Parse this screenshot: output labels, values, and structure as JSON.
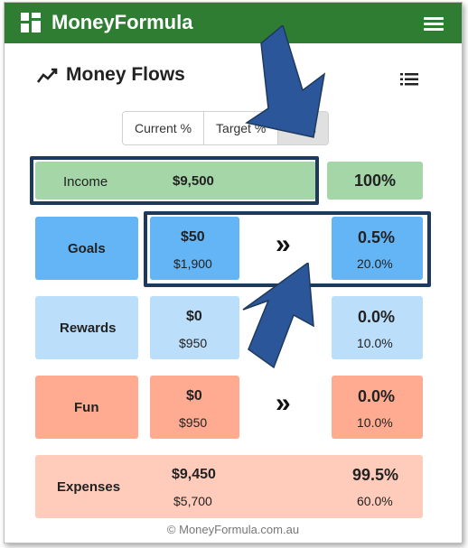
{
  "app": {
    "title": "MoneyFormula"
  },
  "page": {
    "title": "Money Flows"
  },
  "toggle": {
    "options": [
      "Current %",
      "Target %",
      "Both"
    ],
    "active": "Both"
  },
  "rows": {
    "income": {
      "label": "Income",
      "amount": "$9,500",
      "pct": "100%"
    },
    "goals": {
      "label": "Goals",
      "current": "$50",
      "target": "$1,900",
      "current_pct": "0.5%",
      "target_pct": "20.0%"
    },
    "rewards": {
      "label": "Rewards",
      "current": "$0",
      "target": "$950",
      "current_pct": "0.0%",
      "target_pct": "10.0%"
    },
    "fun": {
      "label": "Fun",
      "current": "$0",
      "target": "$950",
      "current_pct": "0.0%",
      "target_pct": "10.0%"
    },
    "expenses": {
      "label": "Expenses",
      "current": "$9,450",
      "target": "$5,700",
      "current_pct": "99.5%",
      "target_pct": "60.0%"
    }
  },
  "flow_arrow": "»",
  "footer": "© MoneyFormula.com.au",
  "colors": {
    "header": "#2e7d32",
    "income": "#a5d6a7",
    "goals": "#64b5f6",
    "rewards": "#bbdefb",
    "fun": "#ffab91",
    "expenses": "#ffccbc",
    "annotation": "#1d3a5c",
    "annotation_arrow": "#2b579a"
  }
}
